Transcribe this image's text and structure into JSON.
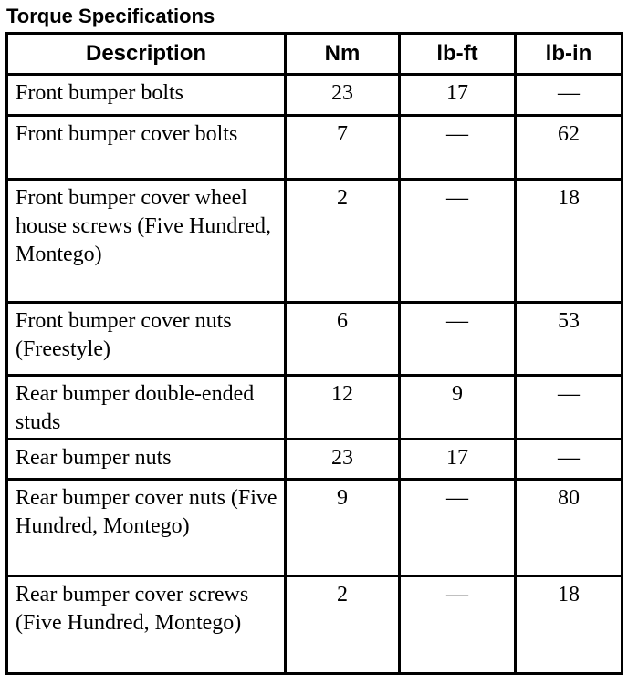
{
  "title": "Torque Specifications",
  "columns": [
    "Description",
    "Nm",
    "lb-ft",
    "lb-in"
  ],
  "rows": [
    {
      "description": "Front bumper bolts",
      "nm": "23",
      "lbft": "17",
      "lbin": "—"
    },
    {
      "description": "Front bumper cover bolts",
      "nm": "7",
      "lbft": "—",
      "lbin": "62"
    },
    {
      "description": "Front bumper cover wheel house screws (Five Hundred, Montego)",
      "nm": "2",
      "lbft": "—",
      "lbin": "18"
    },
    {
      "description": "Front bumper cover nuts (Freestyle)",
      "nm": "6",
      "lbft": "—",
      "lbin": "53"
    },
    {
      "description": "Rear bumper double-ended studs",
      "nm": "12",
      "lbft": "9",
      "lbin": "—"
    },
    {
      "description": "Rear bumper nuts",
      "nm": "23",
      "lbft": "17",
      "lbin": "—"
    },
    {
      "description": "Rear bumper cover nuts (Five Hundred, Montego)",
      "nm": "9",
      "lbft": "—",
      "lbin": "80"
    },
    {
      "description": "Rear bumper cover screws (Five Hundred, Montego)",
      "nm": "2",
      "lbft": "—",
      "lbin": "18"
    }
  ]
}
